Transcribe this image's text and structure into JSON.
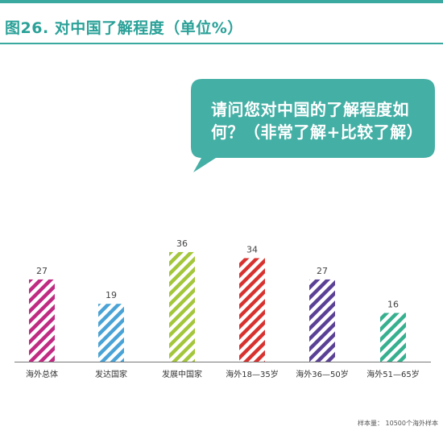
{
  "title": "图26. 对中国了解程度（单位%）",
  "bubble": {
    "text": "请问您对中国的了解程度如何？（非常了解+比较了解）"
  },
  "footnote": "样本量： 10500个海外样本",
  "colors": {
    "accent": "#3aa99f",
    "bubble": "#44afa5",
    "axis": "#777777"
  },
  "chart_data": {
    "type": "bar",
    "title": "",
    "xlabel": "",
    "ylabel": "",
    "ylim": [
      0,
      40
    ],
    "grid": false,
    "categories": [
      "海外总体",
      "发达国家",
      "发展中国家",
      "海外18—35岁",
      "海外36—50岁",
      "海外51—65岁"
    ],
    "values": [
      27,
      19,
      36,
      34,
      27,
      16
    ],
    "bar_colors": [
      "#c02a82",
      "#4aa3d6",
      "#a3c63a",
      "#d8322f",
      "#5b4196",
      "#36b08f"
    ],
    "pattern": "diagonal-stripes"
  }
}
